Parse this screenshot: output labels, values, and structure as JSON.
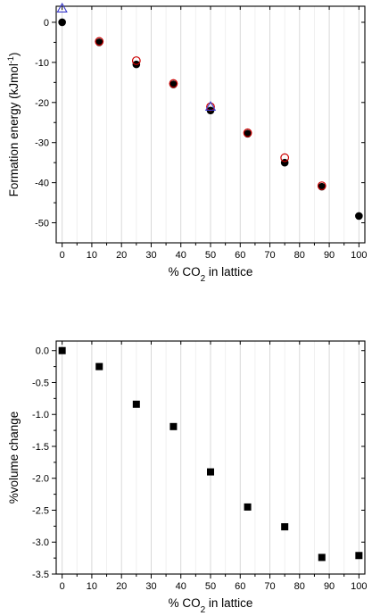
{
  "chart_data": [
    {
      "type": "scatter",
      "title": "",
      "xlabel": {
        "pre": "% CO",
        "sub": "2",
        "post": " in lattice"
      },
      "ylabel": {
        "pre": "Formation energy (kJmol",
        "sup": "-1",
        "post": ")"
      },
      "xlim": [
        -2,
        102
      ],
      "ylim": [
        -55,
        4
      ],
      "grid": "vertical",
      "x_ticks": [
        0,
        10,
        20,
        30,
        40,
        50,
        60,
        70,
        80,
        90,
        100
      ],
      "x_tick_labels": [
        "0",
        "10",
        "20",
        "30",
        "40",
        "50",
        "60",
        "70",
        "80",
        "90",
        "100"
      ],
      "y_ticks": [
        0,
        -10,
        -20,
        -30,
        -40,
        -50
      ],
      "y_tick_labels": [
        "0",
        "-10",
        "-20",
        "-30",
        "-40",
        "-50"
      ],
      "series": [
        {
          "marker": "filled-circle",
          "color": "#000000",
          "x": [
            0,
            12.5,
            25,
            37.5,
            50,
            62.5,
            75,
            87.5,
            100
          ],
          "y": [
            0,
            -5,
            -10.5,
            -15.5,
            -22,
            -27.8,
            -35,
            -41,
            -48.3
          ]
        },
        {
          "marker": "open-circle",
          "color": "#cc0000",
          "x": [
            12.5,
            25,
            37.5,
            50,
            62.5,
            75,
            87.5
          ],
          "y": [
            -5,
            -9.8,
            -15.5,
            -21.3,
            -27.8,
            -34,
            -41
          ]
        },
        {
          "marker": "open-triangle",
          "color": "#3a3acc",
          "x": [
            0,
            50
          ],
          "y": [
            3.5,
            -21
          ]
        }
      ]
    },
    {
      "type": "scatter",
      "title": "",
      "xlabel": {
        "pre": "% CO",
        "sub": "2",
        "post": " in lattice"
      },
      "ylabel": {
        "pre": "%volume change",
        "sup": "",
        "post": ""
      },
      "xlim": [
        -2,
        102
      ],
      "ylim": [
        -3.5,
        0.15
      ],
      "grid": "vertical",
      "x_ticks": [
        0,
        10,
        20,
        30,
        40,
        50,
        60,
        70,
        80,
        90,
        100
      ],
      "x_tick_labels": [
        "0",
        "10",
        "20",
        "30",
        "40",
        "50",
        "60",
        "70",
        "80",
        "90",
        "100"
      ],
      "y_ticks": [
        0,
        -0.5,
        -1,
        -1.5,
        -2,
        -2.5,
        -3,
        -3.5
      ],
      "y_tick_labels": [
        "0.0",
        "-0.5",
        "-1.0",
        "-1.5",
        "-2.0",
        "-2.5",
        "-3.0",
        "-3.5"
      ],
      "series": [
        {
          "marker": "filled-square",
          "color": "#000000",
          "x": [
            0,
            12.5,
            25,
            37.5,
            50,
            62.5,
            75,
            87.5,
            100
          ],
          "y": [
            0,
            -0.25,
            -0.84,
            -1.19,
            -1.9,
            -2.45,
            -2.76,
            -3.24,
            -3.21
          ]
        }
      ]
    }
  ]
}
